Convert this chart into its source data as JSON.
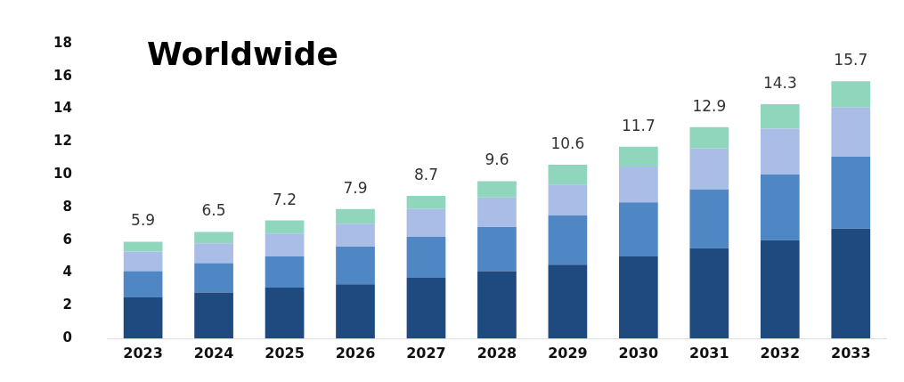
{
  "chart_data": {
    "type": "bar",
    "stacked": true,
    "categories": [
      "2023",
      "2024",
      "2025",
      "2026",
      "2027",
      "2028",
      "2029",
      "2030",
      "2031",
      "2032",
      "2033"
    ],
    "series": [
      {
        "color": "#1f4a80",
        "values": [
          2.5,
          2.8,
          3.1,
          3.3,
          3.7,
          4.1,
          4.5,
          5.0,
          5.5,
          6.0,
          6.7
        ]
      },
      {
        "color": "#4f86c4",
        "values": [
          1.6,
          1.8,
          1.9,
          2.3,
          2.5,
          2.7,
          3.0,
          3.3,
          3.6,
          4.0,
          4.4
        ]
      },
      {
        "color": "#a9bde6",
        "values": [
          1.2,
          1.2,
          1.4,
          1.4,
          1.7,
          1.8,
          1.9,
          2.2,
          2.5,
          2.8,
          3.0
        ]
      },
      {
        "color": "#8fd6bd",
        "values": [
          0.6,
          0.7,
          0.8,
          0.9,
          0.8,
          1.0,
          1.2,
          1.2,
          1.3,
          1.5,
          1.6
        ]
      }
    ],
    "totals": [
      "5.9",
      "6.5",
      "7.2",
      "7.9",
      "8.7",
      "9.6",
      "10.6",
      "11.7",
      "12.9",
      "14.3",
      "15.7"
    ],
    "ylim": [
      0,
      18
    ],
    "yticks": [
      0,
      2,
      4,
      6,
      8,
      10,
      12,
      14,
      16,
      18
    ],
    "grid": false,
    "legend": false,
    "annotations": [
      "Worldwide"
    ]
  }
}
